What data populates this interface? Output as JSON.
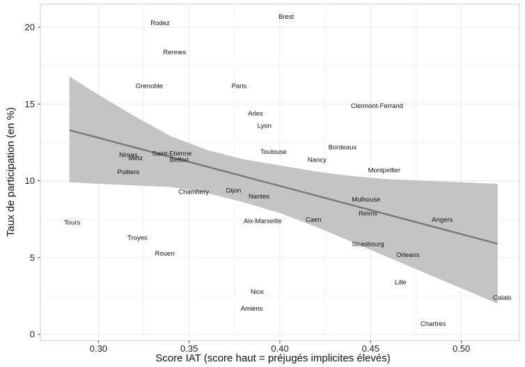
{
  "chart_data": {
    "type": "scatter",
    "title": "",
    "xlabel": "Score IAT (score haut = préjugés implicites élevés)",
    "ylabel": "Taux de participation (en %)",
    "xlim": [
      0.268,
      0.532
    ],
    "ylim": [
      -0.4,
      21.5
    ],
    "x_ticks": [
      0.3,
      0.35,
      0.4,
      0.45,
      0.5
    ],
    "x_tick_labels": [
      "0.30",
      "0.35",
      "0.40",
      "0.45",
      "0.50"
    ],
    "y_ticks": [
      0,
      5,
      10,
      15,
      20
    ],
    "y_tick_labels": [
      "0",
      "5",
      "10",
      "15",
      "20"
    ],
    "grid": true,
    "panel_background": "#ffffff",
    "grid_color": "#ebebeb",
    "points": [
      {
        "label": "Brest",
        "x": 0.4035,
        "y": 20.7
      },
      {
        "label": "Rodez",
        "x": 0.334,
        "y": 20.3
      },
      {
        "label": "Rennes",
        "x": 0.342,
        "y": 18.4
      },
      {
        "label": "Grenoble",
        "x": 0.328,
        "y": 16.2
      },
      {
        "label": "Paris",
        "x": 0.3775,
        "y": 16.2
      },
      {
        "label": "Clermont-Ferrand",
        "x": 0.4535,
        "y": 14.9
      },
      {
        "label": "Arles",
        "x": 0.3865,
        "y": 14.4
      },
      {
        "label": "Lyon",
        "x": 0.3915,
        "y": 13.6
      },
      {
        "label": "Bordeaux",
        "x": 0.4345,
        "y": 12.2
      },
      {
        "label": "Toulouse",
        "x": 0.3965,
        "y": 11.9
      },
      {
        "label": "Nimes",
        "x": 0.3165,
        "y": 11.7
      },
      {
        "label": "Saint-Etienne",
        "x": 0.3405,
        "y": 11.8
      },
      {
        "label": "Metz",
        "x": 0.3205,
        "y": 11.5
      },
      {
        "label": "Belfort",
        "x": 0.3445,
        "y": 11.4
      },
      {
        "label": "Nancy",
        "x": 0.4205,
        "y": 11.4
      },
      {
        "label": "Poitiers",
        "x": 0.3165,
        "y": 10.6
      },
      {
        "label": "Montpellier",
        "x": 0.4575,
        "y": 10.7
      },
      {
        "label": "Chambery",
        "x": 0.3525,
        "y": 9.3
      },
      {
        "label": "Dijon",
        "x": 0.3745,
        "y": 9.4
      },
      {
        "label": "Nantes",
        "x": 0.3885,
        "y": 9.0
      },
      {
        "label": "Mulhouse",
        "x": 0.4475,
        "y": 8.8
      },
      {
        "label": "Reims",
        "x": 0.4485,
        "y": 7.9
      },
      {
        "label": "Tours",
        "x": 0.2855,
        "y": 7.3
      },
      {
        "label": "Aix-Marseille",
        "x": 0.3905,
        "y": 7.4
      },
      {
        "label": "Caen",
        "x": 0.4185,
        "y": 7.5
      },
      {
        "label": "Angers",
        "x": 0.4895,
        "y": 7.5
      },
      {
        "label": "Troyes",
        "x": 0.3215,
        "y": 6.3
      },
      {
        "label": "Strasbourg",
        "x": 0.4485,
        "y": 5.9
      },
      {
        "label": "Rouen",
        "x": 0.3365,
        "y": 5.3
      },
      {
        "label": "Orleans",
        "x": 0.4705,
        "y": 5.2
      },
      {
        "label": "Lille",
        "x": 0.4665,
        "y": 3.4
      },
      {
        "label": "Nice",
        "x": 0.3875,
        "y": 2.8
      },
      {
        "label": "Calais",
        "x": 0.5225,
        "y": 2.4
      },
      {
        "label": "Amiens",
        "x": 0.3845,
        "y": 1.7
      },
      {
        "label": "Chartres",
        "x": 0.4845,
        "y": 0.7
      }
    ],
    "trend_line": {
      "x": [
        0.284,
        0.52
      ],
      "y": [
        13.3,
        5.9
      ]
    },
    "confidence_band": {
      "x": [
        0.284,
        0.3,
        0.32,
        0.34,
        0.36,
        0.38,
        0.4,
        0.42,
        0.44,
        0.46,
        0.48,
        0.5,
        0.52
      ],
      "upper": [
        16.8,
        15.6,
        14.2,
        12.9,
        12.0,
        11.4,
        11.0,
        10.6,
        10.3,
        10.1,
        10.0,
        9.9,
        9.8
      ],
      "lower": [
        9.9,
        9.8,
        9.7,
        9.6,
        9.2,
        8.6,
        7.9,
        7.0,
        6.0,
        5.0,
        4.0,
        3.0,
        2.0
      ]
    },
    "colors": {
      "band": "#bebebe",
      "trend": "#7a7a7a",
      "text": "#111111"
    }
  }
}
